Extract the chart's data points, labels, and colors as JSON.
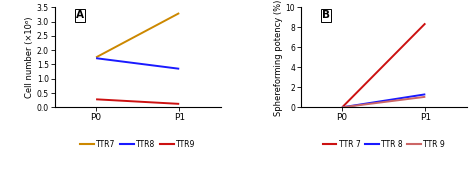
{
  "panel_A": {
    "title": "A",
    "ylabel": "Cell number (×10⁶)",
    "xlabel_ticks": [
      "P0",
      "P1"
    ],
    "series": {
      "TTR7": {
        "color": "#cc8800",
        "P0": 1.75,
        "P1": 3.3
      },
      "TTR8": {
        "color": "#1a1aff",
        "P0": 1.72,
        "P1": 1.35
      },
      "TTR9": {
        "color": "#cc1111",
        "P0": 0.28,
        "P1": 0.12
      }
    },
    "ylim": [
      0,
      3.5
    ],
    "yticks": [
      0.0,
      0.5,
      1.0,
      1.5,
      2.0,
      2.5,
      3.0,
      3.5
    ],
    "ytick_labels": [
      "0.0",
      "0.5",
      "1.0",
      "1.5",
      "2.0",
      "2.5",
      "3.0",
      "3.5"
    ]
  },
  "panel_B": {
    "title": "B",
    "ylabel": "Sphereforming potency (%)",
    "xlabel_ticks": [
      "P0",
      "P1"
    ],
    "series": {
      "TTR 7": {
        "color": "#cc1111",
        "P0": 0.0,
        "P1": 8.4
      },
      "TTR 8": {
        "color": "#1a1aff",
        "P0": 0.0,
        "P1": 1.3
      },
      "TTR 9": {
        "color": "#cc6666",
        "P0": 0.0,
        "P1": 1.05
      }
    },
    "ylim": [
      0,
      10
    ],
    "yticks": [
      0,
      2,
      4,
      6,
      8,
      10
    ],
    "ytick_labels": [
      "0",
      "2",
      "4",
      "6",
      "8",
      "10"
    ]
  },
  "legend_A": {
    "labels": [
      "TTR7",
      "TTR8",
      "TTR9"
    ],
    "colors": [
      "#cc8800",
      "#1a1aff",
      "#cc1111"
    ]
  },
  "legend_B": {
    "labels": [
      "TTR 7",
      "TTR 8",
      "TTR 9"
    ],
    "colors": [
      "#cc1111",
      "#1a1aff",
      "#cc6666"
    ]
  }
}
